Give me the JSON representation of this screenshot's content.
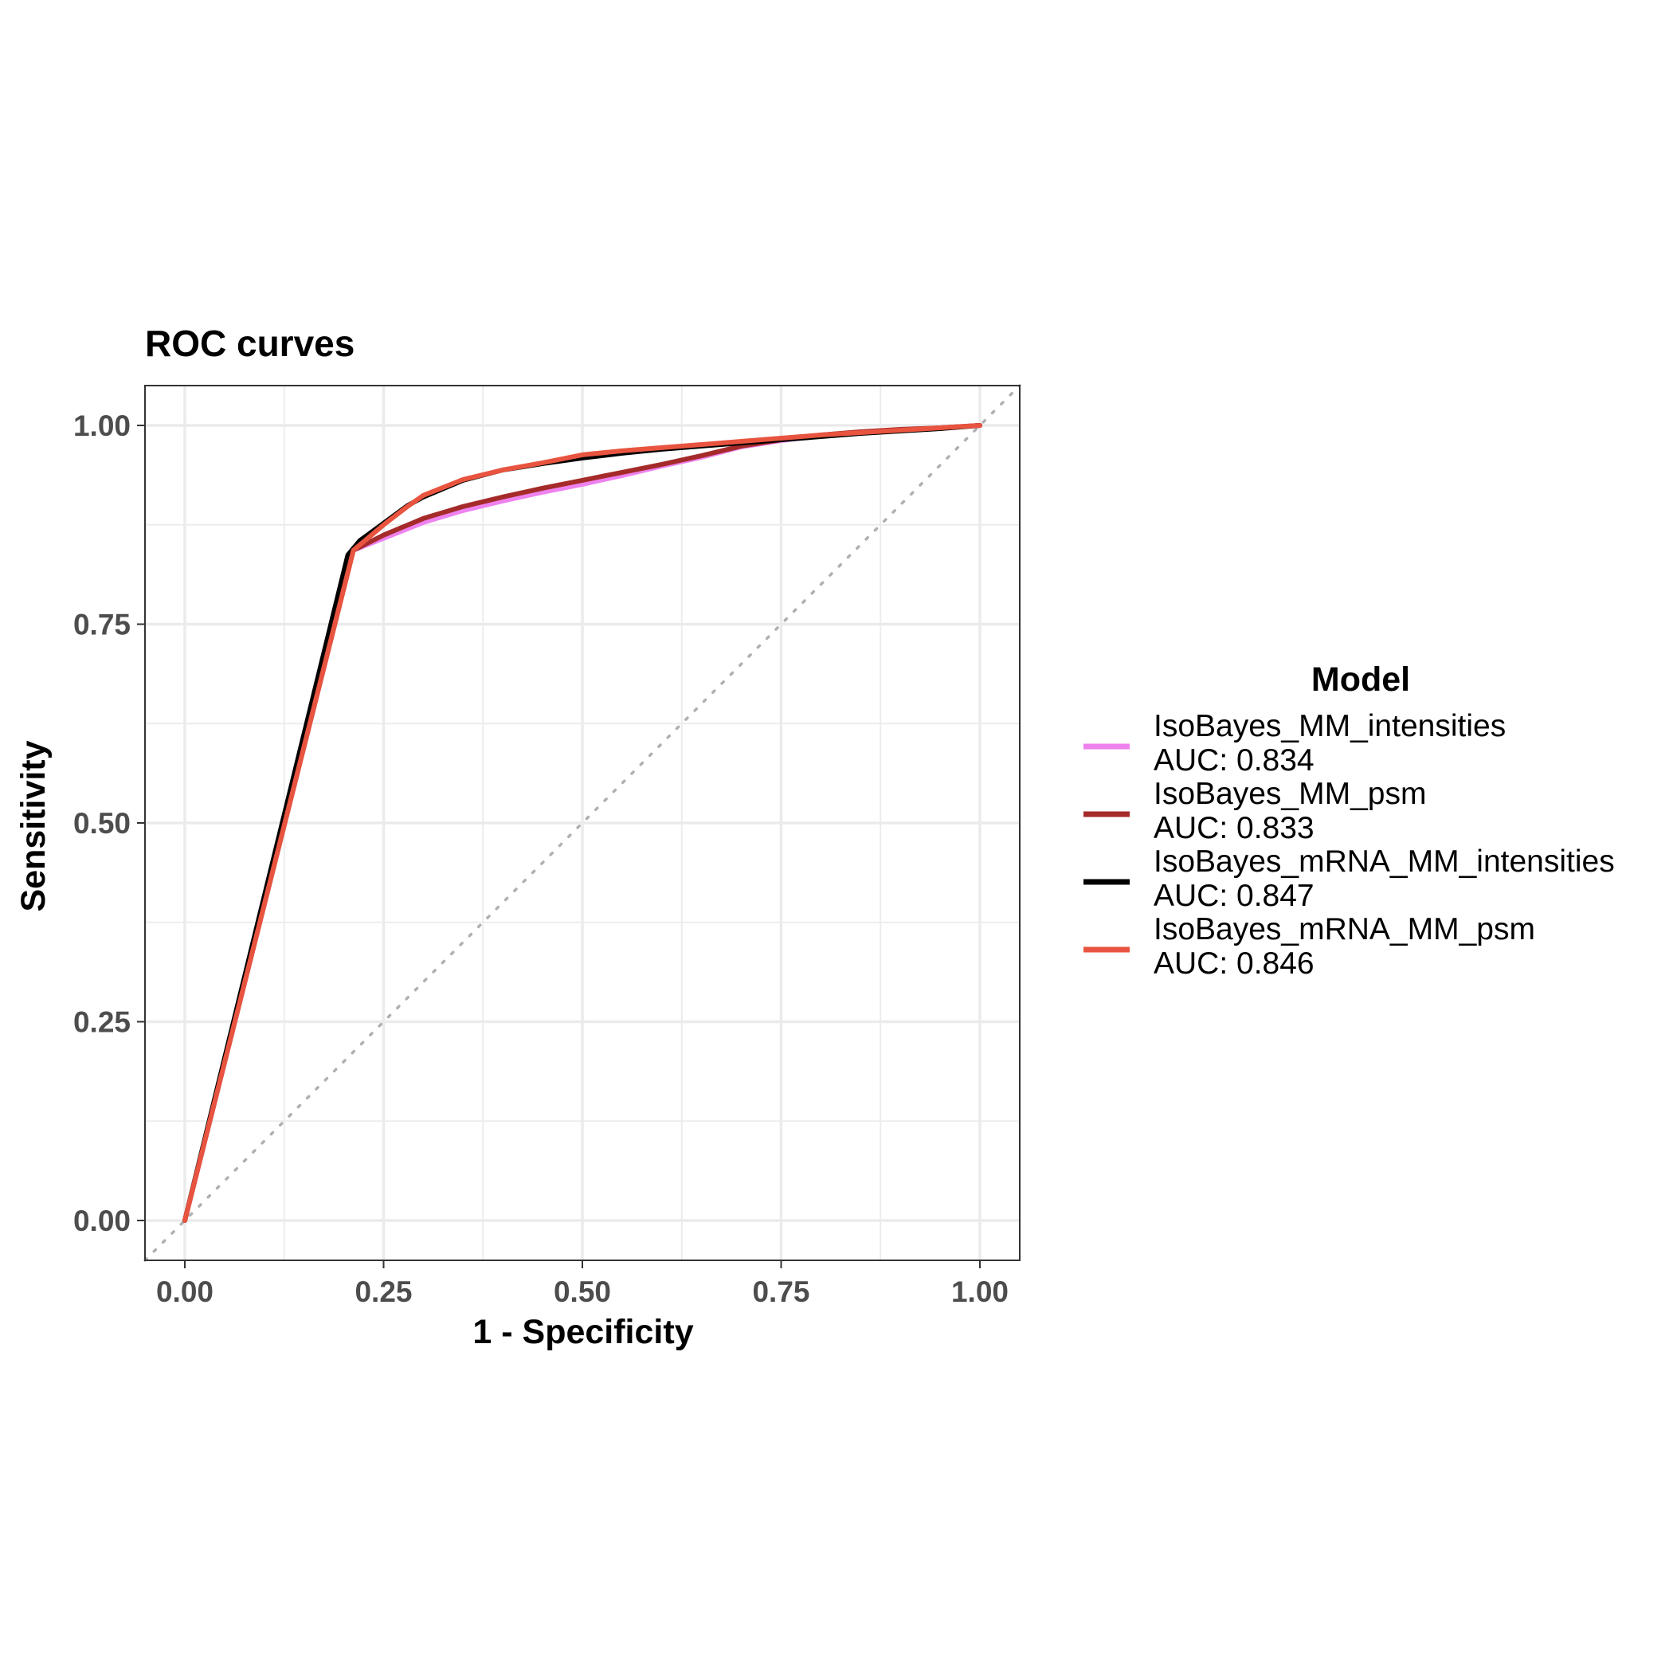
{
  "chart_data": {
    "type": "line",
    "title": "ROC curves",
    "xlabel": "1 - Specificity",
    "ylabel": "Sensitivity",
    "xlim": [
      0,
      1
    ],
    "ylim": [
      0,
      1
    ],
    "x_ticks": [
      "0.00",
      "0.25",
      "0.50",
      "0.75",
      "1.00"
    ],
    "y_ticks": [
      "0.00",
      "0.25",
      "0.50",
      "0.75",
      "1.00"
    ],
    "grid": true,
    "reference_line": "diagonal",
    "legend": {
      "title": "Model",
      "position": "right"
    },
    "series": [
      {
        "name": "IsoBayes_MM_intensities",
        "auc_label": "AUC: 0.834",
        "color": "#ee82ee",
        "x": [
          0,
          0.212,
          0.25,
          0.3,
          0.35,
          0.4,
          0.45,
          0.5,
          0.55,
          0.6,
          0.65,
          0.7,
          0.75,
          0.8,
          0.85,
          0.9,
          0.95,
          1.0
        ],
        "y": [
          0,
          0.843,
          0.858,
          0.878,
          0.893,
          0.905,
          0.916,
          0.926,
          0.937,
          0.949,
          0.96,
          0.973,
          0.981,
          0.987,
          0.991,
          0.994,
          0.997,
          1.0
        ]
      },
      {
        "name": "IsoBayes_MM_psm",
        "auc_label": "AUC: 0.833",
        "color": "#a52a2a",
        "x": [
          0,
          0.212,
          0.25,
          0.3,
          0.35,
          0.4,
          0.45,
          0.5,
          0.55,
          0.6,
          0.65,
          0.7,
          0.75,
          0.8,
          0.85,
          0.9,
          0.95,
          1.0
        ],
        "y": [
          0,
          0.843,
          0.862,
          0.883,
          0.898,
          0.91,
          0.921,
          0.931,
          0.941,
          0.951,
          0.962,
          0.974,
          0.982,
          0.988,
          0.992,
          0.995,
          0.997,
          1.0
        ]
      },
      {
        "name": "IsoBayes_mRNA_MM_intensities",
        "auc_label": "AUC: 0.847",
        "color": "#000000",
        "x": [
          0,
          0.205,
          0.22,
          0.25,
          0.28,
          0.3,
          0.35,
          0.4,
          0.45,
          0.5,
          0.55,
          0.6,
          0.65,
          0.7,
          0.75,
          0.8,
          0.85,
          0.9,
          0.95,
          1.0
        ],
        "y": [
          0,
          0.837,
          0.855,
          0.877,
          0.899,
          0.91,
          0.931,
          0.944,
          0.952,
          0.959,
          0.965,
          0.97,
          0.974,
          0.978,
          0.982,
          0.986,
          0.99,
          0.993,
          0.996,
          1.0
        ]
      },
      {
        "name": "IsoBayes_mRNA_MM_psm",
        "auc_label": "AUC: 0.846",
        "color": "#e8543f",
        "x": [
          0,
          0.212,
          0.23,
          0.25,
          0.28,
          0.3,
          0.35,
          0.4,
          0.45,
          0.5,
          0.55,
          0.6,
          0.65,
          0.7,
          0.75,
          0.8,
          0.85,
          0.9,
          0.95,
          1.0
        ],
        "y": [
          0,
          0.843,
          0.858,
          0.875,
          0.898,
          0.912,
          0.932,
          0.944,
          0.953,
          0.963,
          0.968,
          0.972,
          0.976,
          0.98,
          0.984,
          0.988,
          0.991,
          0.994,
          0.997,
          1.0
        ]
      }
    ]
  }
}
